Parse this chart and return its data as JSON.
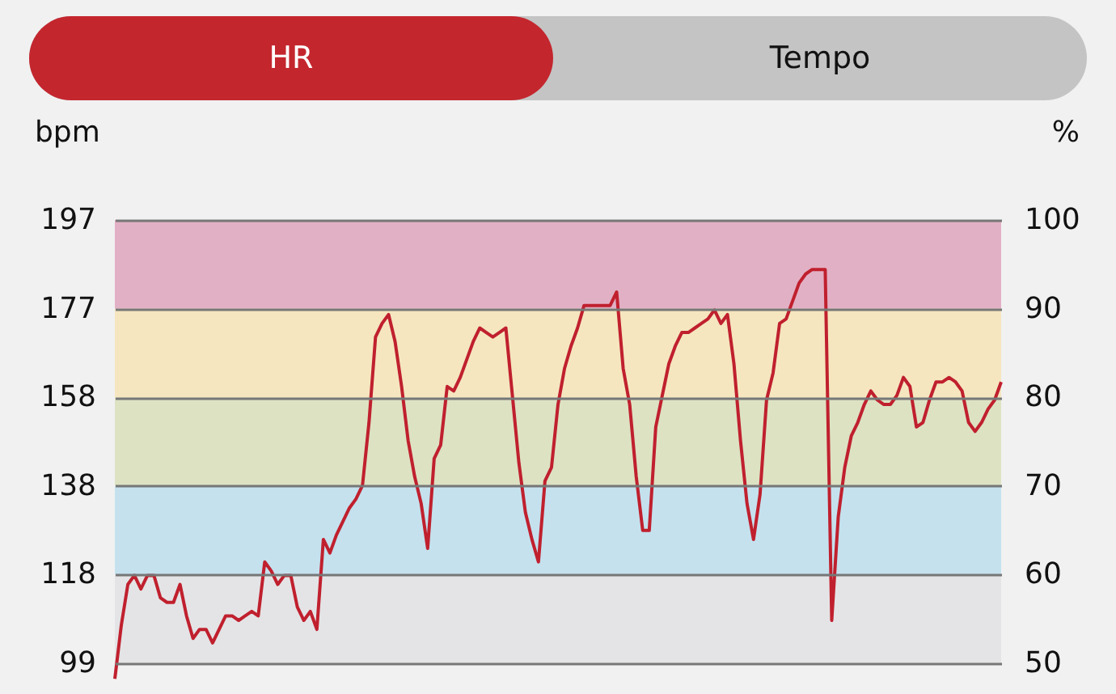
{
  "chart_data": {
    "type": "line",
    "ylabel": "bpm",
    "y2label": "%",
    "annotations": [
      "HR",
      "Tempo"
    ],
    "categories": [
      null,
      null,
      null,
      null,
      null,
      null,
      null,
      null,
      null,
      null,
      null,
      null,
      null,
      null,
      null,
      null,
      null,
      null,
      null,
      null,
      null,
      null,
      null,
      null,
      null,
      null,
      null,
      null,
      null,
      null,
      null,
      null,
      null,
      null,
      null,
      null,
      null,
      null,
      null,
      null,
      null,
      null,
      null,
      null,
      null,
      null,
      null,
      null,
      null,
      null,
      null,
      null,
      null,
      null,
      null,
      null,
      null,
      null,
      null,
      null,
      null,
      null,
      null,
      null,
      null,
      null,
      null,
      null,
      null,
      null,
      null,
      null,
      null,
      null,
      null,
      null,
      null,
      null,
      null,
      null,
      null,
      null,
      null,
      null,
      null,
      null,
      null,
      null,
      null,
      null,
      null,
      null,
      null,
      null,
      null,
      null,
      null,
      null,
      null,
      null,
      null,
      null,
      null,
      null,
      null,
      null,
      null,
      null,
      null,
      null,
      null,
      null,
      null,
      null,
      null,
      null,
      null,
      null,
      null,
      null,
      null,
      null,
      null,
      null,
      null,
      null,
      null,
      null,
      null,
      null,
      null,
      null,
      null,
      null,
      null,
      null,
      null
    ],
    "series": [
      {
        "color": "#c0202e",
        "values": [
          95,
          107,
          116,
          118,
          115,
          118,
          118,
          113,
          112,
          112,
          116,
          109,
          104,
          106,
          106,
          103,
          106,
          109,
          109,
          108,
          109,
          110,
          109,
          121,
          119,
          116,
          118,
          118,
          111,
          108,
          110,
          106,
          126,
          123,
          127,
          130,
          133,
          135,
          138,
          152,
          171,
          174,
          176,
          170,
          160,
          148,
          140,
          134,
          124,
          144,
          147,
          160,
          159,
          162,
          166,
          170,
          173,
          172,
          171,
          172,
          173,
          158,
          143,
          132,
          126,
          121,
          139,
          142,
          156,
          164,
          169,
          173,
          178,
          178,
          178,
          178,
          178,
          181,
          164,
          156,
          140,
          128,
          128,
          151,
          158,
          165,
          169,
          172,
          172,
          173,
          174,
          175,
          177,
          174,
          176,
          165,
          148,
          134,
          126,
          136,
          157,
          163,
          174,
          175,
          179,
          183,
          185,
          186,
          186,
          186,
          108,
          131,
          142,
          149,
          152,
          156,
          159,
          157,
          156,
          156,
          158,
          162,
          160,
          151,
          152,
          157,
          161,
          161,
          162,
          161,
          159,
          152,
          150,
          152,
          155,
          157,
          161
        ]
      }
    ],
    "ylim": [
      92,
      197
    ],
    "yticks": [
      {
        "value": 98.5,
        "label": "99"
      },
      {
        "value": 118.2,
        "label": "118"
      },
      {
        "value": 137.9,
        "label": "138"
      },
      {
        "value": 157.6,
        "label": "158"
      },
      {
        "value": 177.3,
        "label": "177"
      },
      {
        "value": 197,
        "label": "197"
      }
    ],
    "y2lim": [
      46.7,
      100
    ],
    "y2ticks": [
      50,
      60,
      70,
      80,
      90,
      100
    ],
    "bands": [
      {
        "axis": "y",
        "from": 98.5,
        "to": 118.2,
        "color": "#e4e4e6"
      },
      {
        "axis": "y",
        "from": 118.2,
        "to": 137.9,
        "color": "#c5e1ee"
      },
      {
        "axis": "y",
        "from": 137.9,
        "to": 157.6,
        "color": "#dde2c3"
      },
      {
        "axis": "y",
        "from": 157.6,
        "to": 177.3,
        "color": "#f5e6bf"
      },
      {
        "axis": "y",
        "from": 177.3,
        "to": 197,
        "color": "#e2b0c4"
      }
    ],
    "grid": "y",
    "marker": "none",
    "line_style": "solid"
  }
}
